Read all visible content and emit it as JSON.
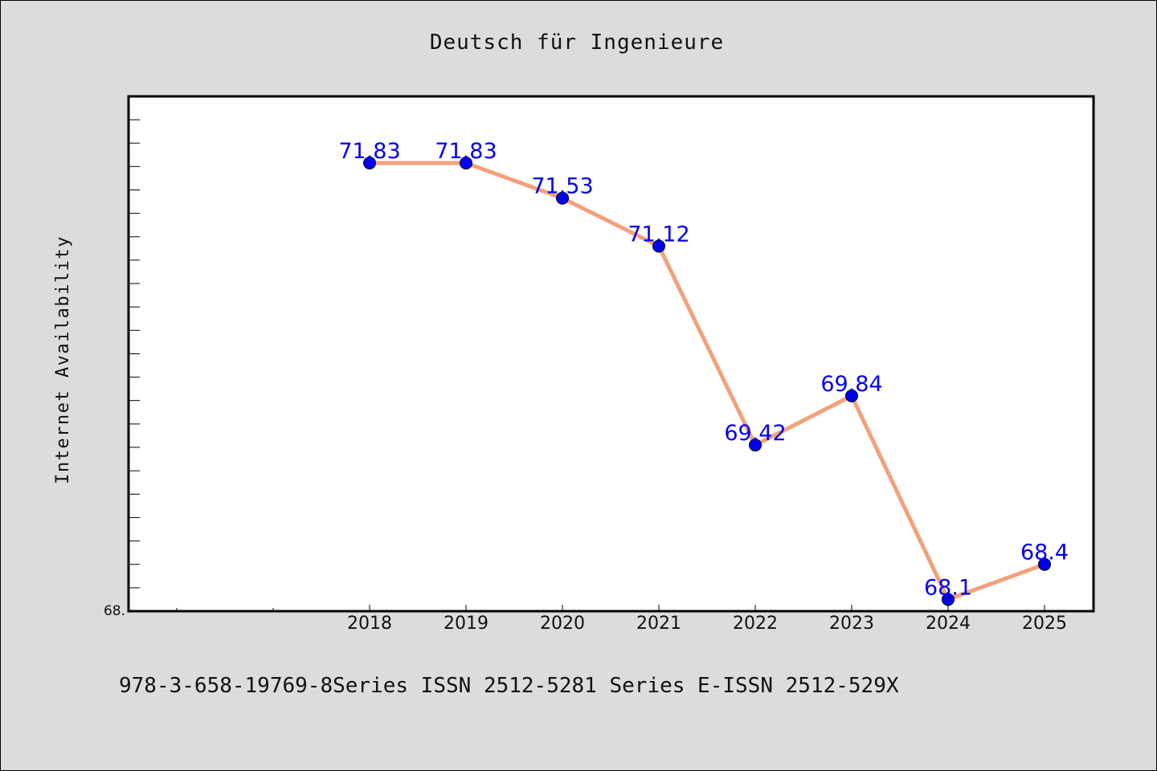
{
  "chart_data": {
    "type": "line",
    "title": "Deutsch für Ingenieure",
    "xlabel": "",
    "ylabel": "Internet Availability",
    "categories": [
      "2018",
      "2019",
      "2020",
      "2021",
      "2022",
      "2023",
      "2024",
      "2025"
    ],
    "series": [
      {
        "values": [
          71.83,
          71.83,
          71.53,
          71.12,
          69.42,
          69.84,
          68.1,
          68.4
        ],
        "data_labels": [
          "71.83",
          "71.83",
          "71.53",
          "71.12",
          "69.42",
          "69.84",
          "68.1",
          "68.4"
        ]
      }
    ],
    "ylim": [
      68.0,
      72.4
    ],
    "y_tick_labels": [
      "68."
    ],
    "grid": false,
    "legend": "none",
    "colors": {
      "line": "#f4a07c",
      "marker": "#0000ee",
      "data_label": "#0000ee",
      "plot_background": "#ffffff",
      "figure_background": "#dcdcdc"
    }
  },
  "footer": {
    "text": "978-3-658-19769-8Series ISSN 2512-5281 Series E-ISSN 2512-529X"
  }
}
